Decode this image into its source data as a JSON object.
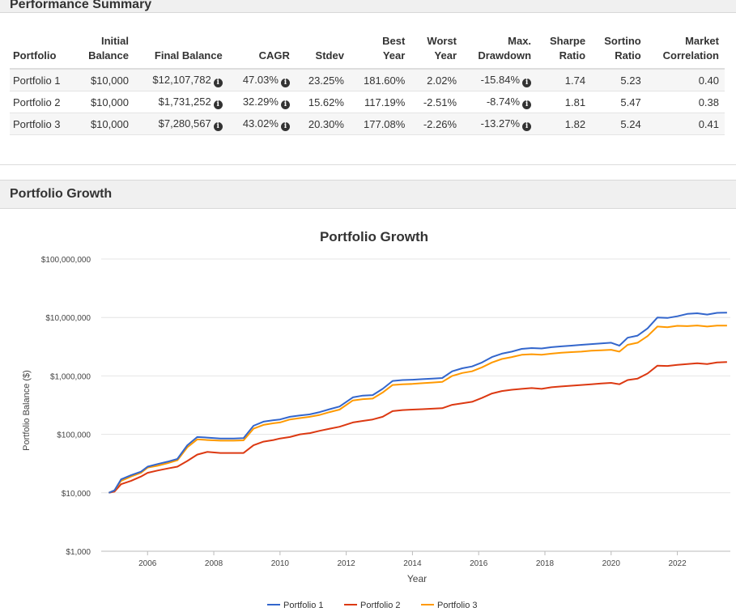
{
  "summary": {
    "title": "Performance Summary",
    "columns": [
      [
        "",
        "Portfolio"
      ],
      [
        "Initial",
        "Balance"
      ],
      [
        "",
        "Final Balance"
      ],
      [
        "",
        "CAGR"
      ],
      [
        "",
        "Stdev"
      ],
      [
        "Best",
        "Year"
      ],
      [
        "Worst",
        "Year"
      ],
      [
        "Max.",
        "Drawdown"
      ],
      [
        "Sharpe",
        "Ratio"
      ],
      [
        "Sortino",
        "Ratio"
      ],
      [
        "Market",
        "Correlation"
      ]
    ],
    "rows": [
      {
        "name": "Portfolio 1",
        "initial": "$10,000",
        "final": "$12,107,782",
        "cagr": "47.03%",
        "stdev": "23.25%",
        "best": "181.60%",
        "worst": "2.02%",
        "maxdd": "-15.84%",
        "sharpe": "1.74",
        "sortino": "5.23",
        "corr": "0.40"
      },
      {
        "name": "Portfolio 2",
        "initial": "$10,000",
        "final": "$1,731,252",
        "cagr": "32.29%",
        "stdev": "15.62%",
        "best": "117.19%",
        "worst": "-2.51%",
        "maxdd": "-8.74%",
        "sharpe": "1.81",
        "sortino": "5.47",
        "corr": "0.38"
      },
      {
        "name": "Portfolio 3",
        "initial": "$10,000",
        "final": "$7,280,567",
        "cagr": "43.02%",
        "stdev": "20.30%",
        "best": "177.08%",
        "worst": "-2.26%",
        "maxdd": "-13.27%",
        "sharpe": "1.82",
        "sortino": "5.24",
        "corr": "0.41"
      }
    ],
    "info_icon": "info-circle-icon"
  },
  "growth": {
    "panel_title": "Portfolio Growth"
  },
  "chart_data": {
    "type": "line",
    "title": "Portfolio Growth",
    "xlabel": "Year",
    "ylabel": "Portfolio Balance ($)",
    "yscale": "log",
    "ylim": [
      1000,
      100000000
    ],
    "xlim": [
      2004.6,
      2023.6
    ],
    "y_ticks": [
      1000,
      10000,
      100000,
      1000000,
      10000000,
      100000000
    ],
    "y_tick_labels": [
      "$1,000",
      "$10,000",
      "$100,000",
      "$1,000,000",
      "$10,000,000",
      "$100,000,000"
    ],
    "x_ticks": [
      2006,
      2008,
      2010,
      2012,
      2014,
      2016,
      2018,
      2020,
      2022
    ],
    "x_tick_labels": [
      "2006",
      "2008",
      "2010",
      "2012",
      "2014",
      "2016",
      "2018",
      "2020",
      "2022"
    ],
    "grid": true,
    "legend": "bottom",
    "series": [
      {
        "name": "Portfolio 1",
        "color": "#3366cc",
        "x": [
          2004.83,
          2005.0,
          2005.2,
          2005.5,
          2005.8,
          2006.0,
          2006.3,
          2006.6,
          2006.9,
          2007.2,
          2007.5,
          2007.8,
          2008.2,
          2008.6,
          2008.9,
          2009.2,
          2009.5,
          2009.8,
          2010.0,
          2010.3,
          2010.6,
          2010.9,
          2011.2,
          2011.5,
          2011.8,
          2012.2,
          2012.5,
          2012.8,
          2013.1,
          2013.4,
          2013.7,
          2014.0,
          2014.3,
          2014.6,
          2014.9,
          2015.2,
          2015.5,
          2015.8,
          2016.1,
          2016.4,
          2016.7,
          2017.0,
          2017.3,
          2017.6,
          2017.9,
          2018.2,
          2018.5,
          2018.8,
          2019.1,
          2019.4,
          2019.7,
          2020.0,
          2020.25,
          2020.5,
          2020.8,
          2021.1,
          2021.4,
          2021.7,
          2022.0,
          2022.3,
          2022.6,
          2022.9,
          2023.2,
          2023.5
        ],
        "y": [
          10000,
          11000,
          17000,
          20000,
          23000,
          28000,
          31000,
          34000,
          38000,
          65000,
          90000,
          88000,
          85000,
          85000,
          86000,
          140000,
          165000,
          175000,
          180000,
          200000,
          210000,
          220000,
          240000,
          270000,
          300000,
          430000,
          460000,
          470000,
          600000,
          820000,
          850000,
          860000,
          880000,
          900000,
          920000,
          1200000,
          1350000,
          1450000,
          1700000,
          2100000,
          2400000,
          2600000,
          2900000,
          3000000,
          2950000,
          3100000,
          3200000,
          3300000,
          3400000,
          3500000,
          3600000,
          3700000,
          3300000,
          4500000,
          4900000,
          6500000,
          10000000,
          9800000,
          10500000,
          11500000,
          11800000,
          11200000,
          12000000,
          12107782
        ]
      },
      {
        "name": "Portfolio 2",
        "color": "#dc3912",
        "x": [
          2004.83,
          2005.0,
          2005.2,
          2005.5,
          2005.8,
          2006.0,
          2006.3,
          2006.6,
          2006.9,
          2007.2,
          2007.5,
          2007.8,
          2008.2,
          2008.6,
          2008.9,
          2009.2,
          2009.5,
          2009.8,
          2010.0,
          2010.3,
          2010.6,
          2010.9,
          2011.2,
          2011.5,
          2011.8,
          2012.2,
          2012.5,
          2012.8,
          2013.1,
          2013.4,
          2013.7,
          2014.0,
          2014.3,
          2014.6,
          2014.9,
          2015.2,
          2015.5,
          2015.8,
          2016.1,
          2016.4,
          2016.7,
          2017.0,
          2017.3,
          2017.6,
          2017.9,
          2018.2,
          2018.5,
          2018.8,
          2019.1,
          2019.4,
          2019.7,
          2020.0,
          2020.25,
          2020.5,
          2020.8,
          2021.1,
          2021.4,
          2021.7,
          2022.0,
          2022.3,
          2022.6,
          2022.9,
          2023.2,
          2023.5
        ],
        "y": [
          10000,
          10500,
          14000,
          16000,
          19000,
          22000,
          24000,
          26000,
          28000,
          35000,
          45000,
          50000,
          48000,
          48000,
          48000,
          65000,
          75000,
          80000,
          85000,
          90000,
          100000,
          105000,
          115000,
          125000,
          135000,
          160000,
          170000,
          180000,
          200000,
          250000,
          260000,
          265000,
          270000,
          275000,
          280000,
          320000,
          340000,
          360000,
          420000,
          500000,
          550000,
          580000,
          600000,
          620000,
          600000,
          640000,
          660000,
          680000,
          700000,
          720000,
          740000,
          760000,
          720000,
          850000,
          900000,
          1100000,
          1500000,
          1480000,
          1550000,
          1600000,
          1650000,
          1600000,
          1700000,
          1731252
        ]
      },
      {
        "name": "Portfolio 3",
        "color": "#ff9900",
        "x": [
          2004.83,
          2005.0,
          2005.2,
          2005.5,
          2005.8,
          2006.0,
          2006.3,
          2006.6,
          2006.9,
          2007.2,
          2007.5,
          2007.8,
          2008.2,
          2008.6,
          2008.9,
          2009.2,
          2009.5,
          2009.8,
          2010.0,
          2010.3,
          2010.6,
          2010.9,
          2011.2,
          2011.5,
          2011.8,
          2012.2,
          2012.5,
          2012.8,
          2013.1,
          2013.4,
          2013.7,
          2014.0,
          2014.3,
          2014.6,
          2014.9,
          2015.2,
          2015.5,
          2015.8,
          2016.1,
          2016.4,
          2016.7,
          2017.0,
          2017.3,
          2017.6,
          2017.9,
          2018.2,
          2018.5,
          2018.8,
          2019.1,
          2019.4,
          2019.7,
          2020.0,
          2020.25,
          2020.5,
          2020.8,
          2021.1,
          2021.4,
          2021.7,
          2022.0,
          2022.3,
          2022.6,
          2022.9,
          2023.2,
          2023.5
        ],
        "y": [
          10000,
          11000,
          16000,
          19000,
          22000,
          27000,
          29000,
          32000,
          36000,
          60000,
          82000,
          80000,
          78000,
          78000,
          79000,
          125000,
          145000,
          155000,
          160000,
          180000,
          190000,
          200000,
          215000,
          240000,
          265000,
          380000,
          400000,
          410000,
          520000,
          700000,
          720000,
          730000,
          750000,
          770000,
          790000,
          1000000,
          1120000,
          1200000,
          1400000,
          1700000,
          1950000,
          2100000,
          2300000,
          2350000,
          2300000,
          2400000,
          2500000,
          2550000,
          2600000,
          2700000,
          2750000,
          2800000,
          2600000,
          3400000,
          3700000,
          4800000,
          7000000,
          6800000,
          7200000,
          7100000,
          7300000,
          7000000,
          7250000,
          7280567
        ]
      }
    ]
  }
}
